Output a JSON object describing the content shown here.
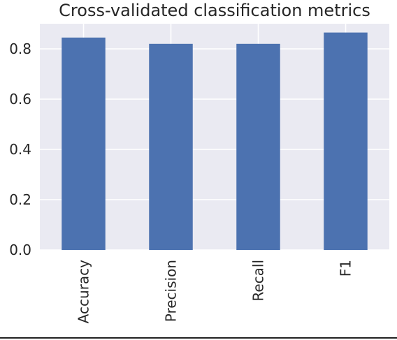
{
  "chart_data": {
    "type": "bar",
    "title": "Cross-validated classification metrics",
    "xlabel": "",
    "ylabel": "",
    "categories": [
      "Accuracy",
      "Precision",
      "Recall",
      "F1"
    ],
    "values": [
      0.845,
      0.82,
      0.82,
      0.865
    ],
    "ylim": [
      0,
      0.9
    ],
    "yticks": [
      "0.0",
      "0.2",
      "0.4",
      "0.6",
      "0.8"
    ],
    "ytick_values": [
      0,
      0.2,
      0.4,
      0.6,
      0.8
    ],
    "grid": true,
    "legend": "none",
    "bar_color": "#4c72b0",
    "plot_background": "#eaeaf2",
    "grid_color": "#ffffff"
  }
}
